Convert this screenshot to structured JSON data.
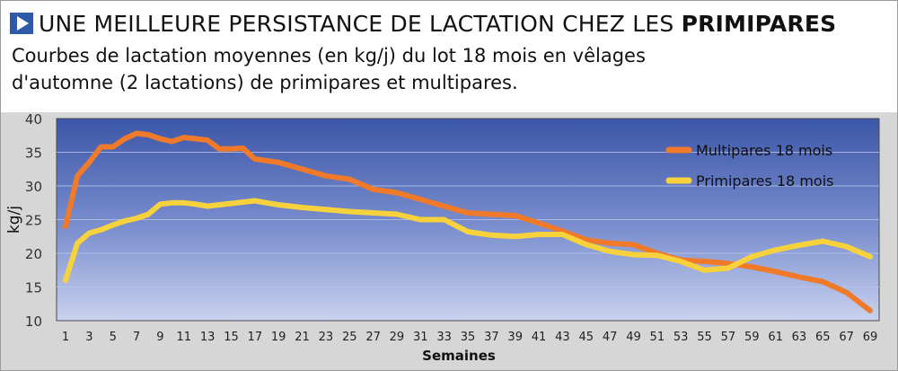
{
  "header": {
    "title_part1": "UNE MEILLEURE PERSISTANCE DE LACTATION CHEZ LES ",
    "title_part2": "PRIMIPARES",
    "subtitle": "Courbes de lactation moyennes (en kg/j) du lot 18 mois en vêlages d'automne (2 lactations) de primipares et multipares."
  },
  "chart_data": {
    "type": "line",
    "xlabel": "Semaines",
    "ylabel": "kg/j",
    "xlim": [
      1,
      69
    ],
    "ylim": [
      10,
      40
    ],
    "yticks": [
      10,
      15,
      20,
      25,
      30,
      35,
      40
    ],
    "xticks": [
      1,
      3,
      5,
      7,
      9,
      11,
      13,
      15,
      17,
      19,
      21,
      23,
      25,
      27,
      29,
      31,
      33,
      35,
      37,
      39,
      41,
      43,
      45,
      47,
      49,
      51,
      53,
      55,
      57,
      59,
      61,
      63,
      65,
      67,
      69
    ],
    "grid": true,
    "legend": "top-right",
    "series": [
      {
        "name": "Multipares 18 mois",
        "color": "#f07a2a",
        "x": [
          1,
          2,
          3,
          4,
          5,
          6,
          7,
          8,
          9,
          10,
          11,
          12,
          13,
          14,
          15,
          16,
          17,
          19,
          21,
          23,
          25,
          27,
          29,
          31,
          33,
          35,
          37,
          39,
          41,
          43,
          45,
          47,
          49,
          51,
          53,
          55,
          57,
          59,
          61,
          63,
          65,
          67,
          69
        ],
        "values": [
          24,
          31.5,
          33.5,
          35.8,
          35.8,
          37,
          37.8,
          37.6,
          37,
          36.6,
          37.2,
          37,
          36.8,
          35.5,
          35.5,
          35.6,
          34,
          33.5,
          32.5,
          31.5,
          31,
          29.5,
          29,
          28,
          27,
          26,
          25.8,
          25.6,
          24.5,
          23.3,
          22,
          21.5,
          21.3,
          20,
          19,
          18.8,
          18.5,
          18,
          17.3,
          16.5,
          15.8,
          14.2,
          11.5
        ]
      },
      {
        "name": "Primipares 18 mois",
        "color": "#f8d23c",
        "x": [
          1,
          2,
          3,
          4,
          5,
          6,
          7,
          8,
          9,
          10,
          11,
          12,
          13,
          14,
          15,
          16,
          17,
          18,
          19,
          21,
          23,
          25,
          27,
          29,
          31,
          33,
          35,
          37,
          39,
          41,
          43,
          45,
          47,
          49,
          51,
          53,
          55,
          57,
          59,
          61,
          63,
          65,
          67,
          69
        ],
        "values": [
          16,
          21.5,
          23,
          23.5,
          24.2,
          24.8,
          25.2,
          25.8,
          27.3,
          27.5,
          27.5,
          27.3,
          27,
          27.2,
          27.4,
          27.6,
          27.8,
          27.5,
          27.2,
          26.8,
          26.5,
          26.2,
          26,
          25.8,
          25,
          25,
          23.2,
          22.7,
          22.5,
          22.8,
          22.8,
          21.3,
          20.3,
          19.8,
          19.7,
          18.8,
          17.5,
          17.8,
          19.5,
          20.5,
          21.2,
          21.8,
          21,
          19.5
        ]
      }
    ]
  }
}
